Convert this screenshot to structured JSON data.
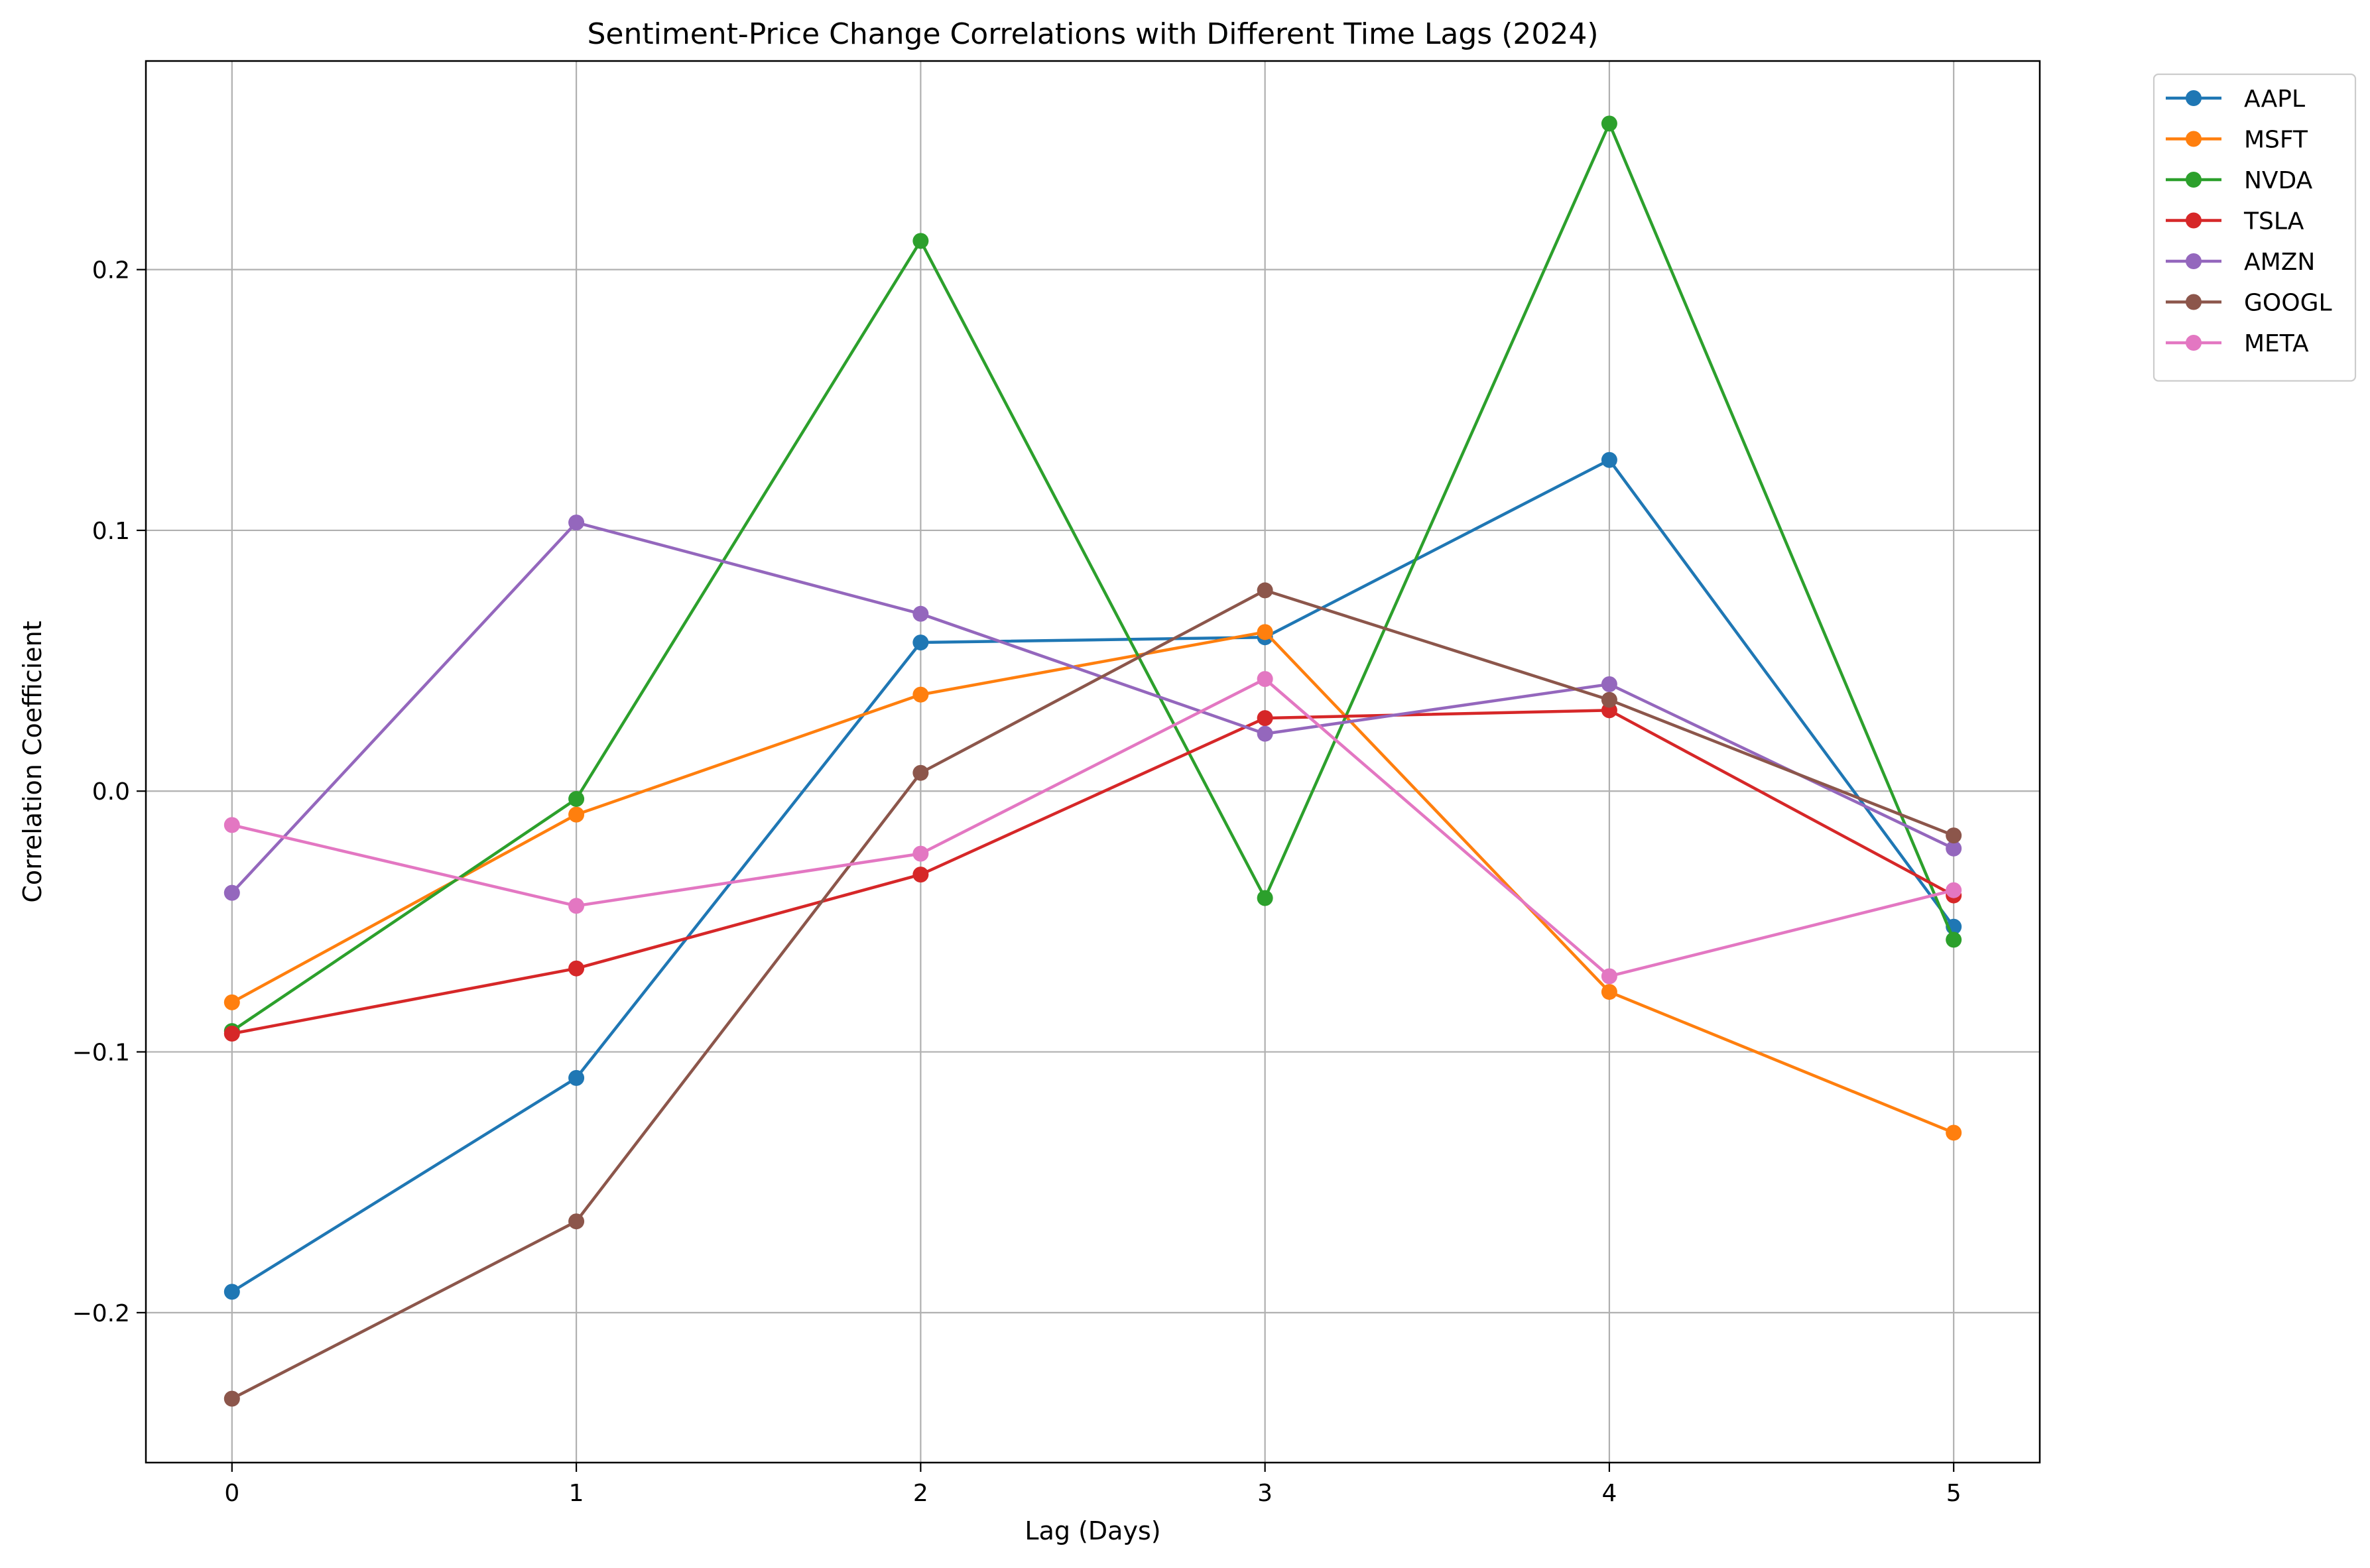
{
  "chart_data": {
    "type": "line",
    "title": "Sentiment-Price Change Correlations with Different Time Lags (2024)",
    "xlabel": "Lag (Days)",
    "ylabel": "Correlation Coefficient",
    "x": [
      0,
      1,
      2,
      3,
      4,
      5
    ],
    "xlim": [
      -0.25,
      5.25
    ],
    "ylim": [
      -0.2575,
      0.28
    ],
    "xticks": [
      0,
      1,
      2,
      3,
      4,
      5
    ],
    "yticks": [
      -0.2,
      -0.1,
      0.0,
      0.1,
      0.2
    ],
    "ytick_labels": [
      "−0.2",
      "−0.1",
      "0.0",
      "0.1",
      "0.2"
    ],
    "grid": true,
    "legend_position": "outside-top-right",
    "series": [
      {
        "name": "AAPL",
        "color": "#1f77b4",
        "values": [
          -0.192,
          -0.11,
          0.057,
          0.059,
          0.127,
          -0.052
        ]
      },
      {
        "name": "MSFT",
        "color": "#ff7f0e",
        "values": [
          -0.081,
          -0.009,
          0.037,
          0.061,
          -0.077,
          -0.131
        ]
      },
      {
        "name": "NVDA",
        "color": "#2ca02c",
        "values": [
          -0.092,
          -0.003,
          0.211,
          -0.041,
          0.256,
          -0.057
        ]
      },
      {
        "name": "TSLA",
        "color": "#d62728",
        "values": [
          -0.093,
          -0.068,
          -0.032,
          0.028,
          0.031,
          -0.04
        ]
      },
      {
        "name": "AMZN",
        "color": "#9467bd",
        "values": [
          -0.039,
          0.103,
          0.068,
          0.022,
          0.041,
          -0.022
        ]
      },
      {
        "name": "GOOGL",
        "color": "#8c564b",
        "values": [
          -0.233,
          -0.165,
          0.007,
          0.077,
          0.035,
          -0.017
        ]
      },
      {
        "name": "META",
        "color": "#e377c2",
        "values": [
          -0.013,
          -0.044,
          -0.024,
          0.043,
          -0.071,
          -0.038
        ]
      }
    ]
  }
}
